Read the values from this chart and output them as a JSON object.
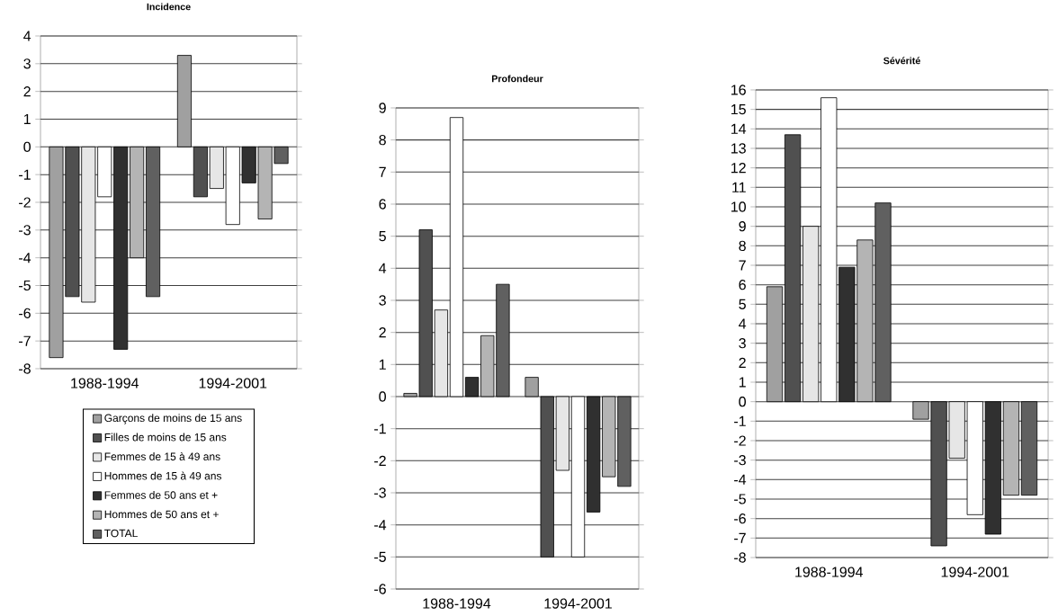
{
  "chart_data": [
    {
      "type": "bar",
      "title": "Incidence",
      "categories": [
        "1988-1994",
        "1994-2001"
      ],
      "ylim": [
        -8,
        4
      ],
      "yticks": [
        -8,
        -7,
        -6,
        -5,
        -4,
        -3,
        -2,
        -1,
        0,
        1,
        2,
        3,
        4
      ],
      "grid": "y",
      "legend": "bottom",
      "series": [
        {
          "name": "Garçons de moins de 15 ans",
          "color": "#a0a0a0",
          "values": [
            -7.6,
            3.3
          ]
        },
        {
          "name": "Filles de moins de 15 ans",
          "color": "#505050",
          "values": [
            -5.4,
            -1.8
          ]
        },
        {
          "name": "Femmes de 15 à 49 ans",
          "color": "#e6e6e6",
          "values": [
            -5.6,
            -1.5
          ]
        },
        {
          "name": "Hommes de 15 à 49 ans",
          "color": "#ffffff",
          "values": [
            -1.8,
            -2.8
          ]
        },
        {
          "name": "Femmes de 50 ans et +",
          "color": "#303030",
          "values": [
            -7.3,
            -1.3
          ]
        },
        {
          "name": "Hommes de 50 ans et +",
          "color": "#b4b4b4",
          "values": [
            -4.0,
            -2.6
          ]
        },
        {
          "name": "TOTAL",
          "color": "#606060",
          "values": [
            -5.4,
            -0.6
          ]
        }
      ]
    },
    {
      "type": "bar",
      "title": "Profondeur",
      "categories": [
        "1988-1994",
        "1994-2001"
      ],
      "ylim": [
        -6,
        9
      ],
      "yticks": [
        -6,
        -5,
        -4,
        -3,
        -2,
        -1,
        0,
        1,
        2,
        3,
        4,
        5,
        6,
        7,
        8,
        9
      ],
      "grid": "y",
      "series": [
        {
          "color": "#a0a0a0",
          "values": [
            0.1,
            0.6
          ]
        },
        {
          "color": "#505050",
          "values": [
            5.2,
            -5.0
          ]
        },
        {
          "color": "#e6e6e6",
          "values": [
            2.7,
            -2.3
          ]
        },
        {
          "color": "#ffffff",
          "values": [
            8.7,
            -5.0
          ]
        },
        {
          "color": "#303030",
          "values": [
            0.6,
            -3.6
          ]
        },
        {
          "color": "#b4b4b4",
          "values": [
            1.9,
            -2.5
          ]
        },
        {
          "color": "#606060",
          "values": [
            3.5,
            -2.8
          ]
        }
      ]
    },
    {
      "type": "bar",
      "title": "Sévérité",
      "categories": [
        "1988-1994",
        "1994-2001"
      ],
      "ylim": [
        -8,
        16
      ],
      "yticks": [
        -8,
        -7,
        -6,
        -5,
        -4,
        -3,
        -2,
        -1,
        0,
        1,
        2,
        3,
        4,
        5,
        6,
        7,
        8,
        9,
        10,
        11,
        12,
        13,
        14,
        15,
        16
      ],
      "grid": "y",
      "series": [
        {
          "color": "#a0a0a0",
          "values": [
            5.9,
            -0.9
          ]
        },
        {
          "color": "#505050",
          "values": [
            13.7,
            -7.4
          ]
        },
        {
          "color": "#e6e6e6",
          "values": [
            9.0,
            -2.9
          ]
        },
        {
          "color": "#ffffff",
          "values": [
            15.6,
            -5.8
          ]
        },
        {
          "color": "#303030",
          "values": [
            6.9,
            -6.8
          ]
        },
        {
          "color": "#b4b4b4",
          "values": [
            8.3,
            -4.8
          ]
        },
        {
          "color": "#606060",
          "values": [
            10.2,
            -4.8
          ]
        }
      ]
    }
  ]
}
